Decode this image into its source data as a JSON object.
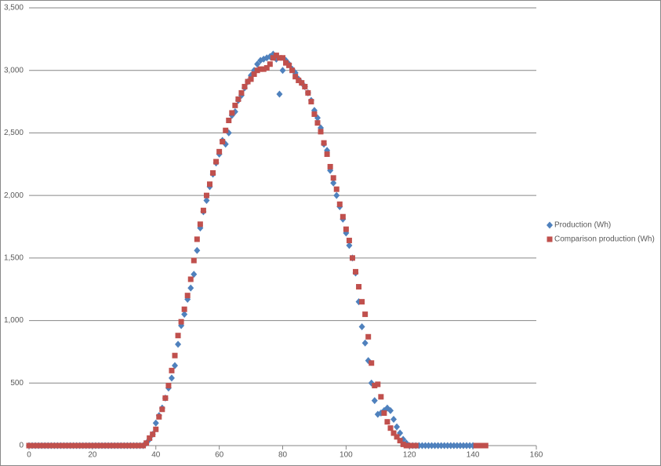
{
  "chart_data": {
    "type": "scatter",
    "xlim": [
      0,
      160
    ],
    "xticks": [
      0,
      20,
      40,
      60,
      80,
      100,
      120,
      140,
      160
    ],
    "ylim": [
      0,
      3500
    ],
    "yticks": [
      0,
      500,
      {
        "value": 1000,
        "label": "1,000"
      },
      {
        "value": 1500,
        "label": "1,500"
      },
      {
        "value": 2000,
        "label": "2,000"
      },
      {
        "value": 2500,
        "label": "2,500"
      },
      {
        "value": 3000,
        "label": "3,000"
      },
      {
        "value": 3500,
        "label": "3,500"
      }
    ],
    "grid": true,
    "legend": "right",
    "series": [
      {
        "name": "Production (Wh)",
        "color": "#4f81bd",
        "marker": "diamond",
        "x": [
          0,
          1,
          2,
          3,
          4,
          5,
          6,
          7,
          8,
          9,
          10,
          11,
          12,
          13,
          14,
          15,
          16,
          17,
          18,
          19,
          20,
          21,
          22,
          23,
          24,
          25,
          26,
          27,
          28,
          29,
          30,
          31,
          32,
          33,
          34,
          35,
          36,
          37,
          38,
          39,
          40,
          41,
          42,
          43,
          44,
          45,
          46,
          47,
          48,
          49,
          50,
          51,
          52,
          53,
          54,
          55,
          56,
          57,
          58,
          59,
          60,
          61,
          62,
          63,
          64,
          65,
          66,
          67,
          68,
          69,
          70,
          71,
          72,
          73,
          74,
          75,
          76,
          77,
          78,
          79,
          80,
          81,
          82,
          83,
          84,
          85,
          86,
          87,
          88,
          89,
          90,
          91,
          92,
          93,
          94,
          95,
          96,
          97,
          98,
          99,
          100,
          101,
          102,
          103,
          104,
          105,
          106,
          107,
          108,
          109,
          110,
          111,
          112,
          113,
          114,
          115,
          116,
          117,
          118,
          119,
          120,
          121,
          122,
          123,
          124,
          125,
          126,
          127,
          128,
          129,
          130,
          131,
          132,
          133,
          134,
          135,
          136,
          137,
          138,
          139,
          140
        ],
        "values": [
          0,
          0,
          0,
          0,
          0,
          0,
          0,
          0,
          0,
          0,
          0,
          0,
          0,
          0,
          0,
          0,
          0,
          0,
          0,
          0,
          0,
          0,
          0,
          0,
          0,
          0,
          0,
          0,
          0,
          0,
          0,
          0,
          0,
          0,
          0,
          0,
          0,
          20,
          50,
          90,
          180,
          240,
          300,
          380,
          460,
          540,
          640,
          810,
          960,
          1050,
          1170,
          1260,
          1370,
          1560,
          1740,
          1870,
          1960,
          2070,
          2170,
          2260,
          2330,
          2440,
          2410,
          2500,
          2640,
          2670,
          2760,
          2800,
          2860,
          2910,
          2960,
          3000,
          3050,
          3080,
          3090,
          3100,
          3110,
          3130,
          3090,
          2810,
          3000,
          3080,
          3050,
          3010,
          2980,
          2930,
          2900,
          2870,
          2820,
          2760,
          2680,
          2620,
          2540,
          2410,
          2360,
          2200,
          2100,
          2000,
          1910,
          1810,
          1700,
          1600,
          1500,
          1380,
          1150,
          950,
          820,
          680,
          500,
          360,
          250,
          260,
          280,
          300,
          280,
          210,
          150,
          100,
          50,
          20,
          0,
          0,
          0,
          0,
          0,
          0,
          0,
          0,
          0,
          0,
          0,
          0,
          0,
          0,
          0,
          0,
          0,
          0,
          0,
          0,
          0
        ]
      },
      {
        "name": "Comparison production (Wh)",
        "color": "#c0504d",
        "marker": "square",
        "x": [
          0,
          1,
          2,
          3,
          4,
          5,
          6,
          7,
          8,
          9,
          10,
          11,
          12,
          13,
          14,
          15,
          16,
          17,
          18,
          19,
          20,
          21,
          22,
          23,
          24,
          25,
          26,
          27,
          28,
          29,
          30,
          31,
          32,
          33,
          34,
          35,
          36,
          37,
          38,
          39,
          40,
          41,
          42,
          43,
          44,
          45,
          46,
          47,
          48,
          49,
          50,
          51,
          52,
          53,
          54,
          55,
          56,
          57,
          58,
          59,
          60,
          61,
          62,
          63,
          64,
          65,
          66,
          67,
          68,
          69,
          70,
          71,
          72,
          73,
          74,
          75,
          76,
          77,
          78,
          79,
          80,
          81,
          82,
          83,
          84,
          85,
          86,
          87,
          88,
          89,
          90,
          91,
          92,
          93,
          94,
          95,
          96,
          97,
          98,
          99,
          100,
          101,
          102,
          103,
          104,
          105,
          106,
          107,
          108,
          109,
          110,
          111,
          112,
          113,
          114,
          115,
          116,
          117,
          118,
          119,
          120,
          121,
          122,
          141,
          142,
          143,
          144
        ],
        "values": [
          0,
          0,
          0,
          0,
          0,
          0,
          0,
          0,
          0,
          0,
          0,
          0,
          0,
          0,
          0,
          0,
          0,
          0,
          0,
          0,
          0,
          0,
          0,
          0,
          0,
          0,
          0,
          0,
          0,
          0,
          0,
          0,
          0,
          0,
          0,
          0,
          0,
          20,
          60,
          90,
          130,
          230,
          290,
          380,
          480,
          600,
          720,
          880,
          990,
          1090,
          1200,
          1330,
          1480,
          1650,
          1770,
          1880,
          2000,
          2090,
          2180,
          2270,
          2350,
          2430,
          2520,
          2600,
          2660,
          2720,
          2770,
          2820,
          2870,
          2910,
          2930,
          2970,
          3000,
          3010,
          3010,
          3020,
          3050,
          3100,
          3120,
          3100,
          3100,
          3060,
          3040,
          3000,
          2950,
          2920,
          2900,
          2870,
          2820,
          2750,
          2650,
          2580,
          2510,
          2420,
          2330,
          2230,
          2140,
          2050,
          1930,
          1830,
          1730,
          1640,
          1500,
          1390,
          1270,
          1150,
          1050,
          870,
          660,
          480,
          490,
          390,
          260,
          190,
          140,
          100,
          70,
          40,
          10,
          0,
          0,
          0,
          0,
          0,
          0,
          0,
          0
        ]
      }
    ]
  }
}
